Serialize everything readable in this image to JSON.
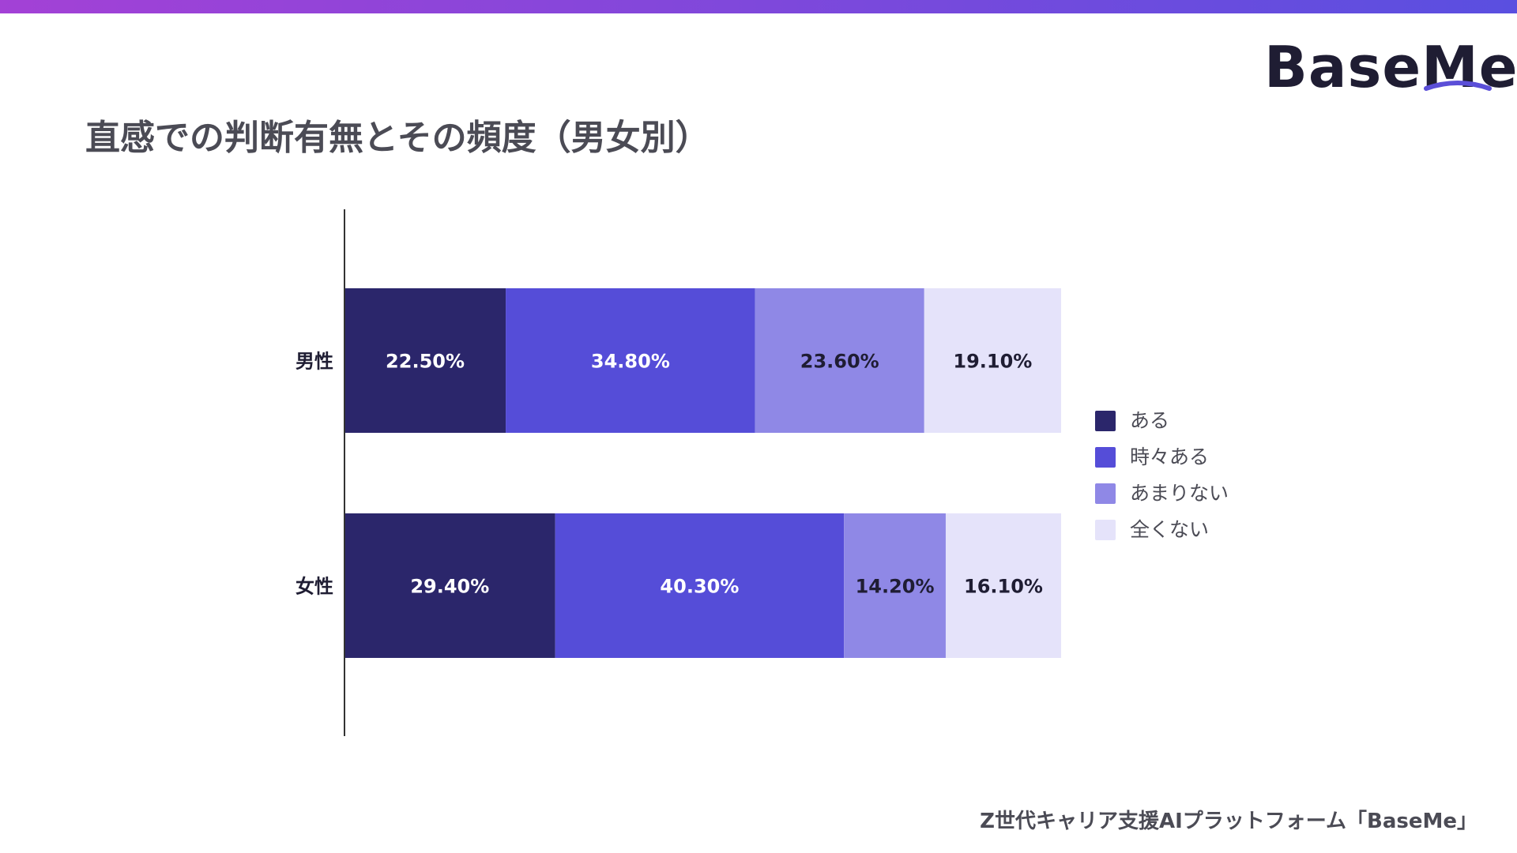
{
  "header": {
    "logo_text": "BaseMe",
    "title": "直感での判断有無とその頻度（男女別）"
  },
  "footer": {
    "text": "Z世代キャリア支援AIプラットフォーム「BaseMe」"
  },
  "colors": {
    "top_bar_start": "#a341d6",
    "top_bar_end": "#5a4fe0",
    "logo_swoosh": "#5b4fd8"
  },
  "chart_data": {
    "type": "bar",
    "orientation": "horizontal",
    "stacked": true,
    "categories": [
      "男性",
      "女性"
    ],
    "series": [
      {
        "name": "ある",
        "values": [
          22.5,
          29.4
        ],
        "labels": [
          "22.50%",
          "29.40%"
        ],
        "color": "#2b266b",
        "label_color": "#ffffff"
      },
      {
        "name": "時々ある",
        "values": [
          34.8,
          40.3
        ],
        "labels": [
          "34.80%",
          "40.30%"
        ],
        "color": "#554dd8",
        "label_color": "#ffffff"
      },
      {
        "name": "あまりない",
        "values": [
          23.6,
          14.2
        ],
        "labels": [
          "23.60%",
          "14.20%"
        ],
        "color": "#8f88e6",
        "label_color": "#1f1d33"
      },
      {
        "name": "全くない",
        "values": [
          19.1,
          16.1
        ],
        "labels": [
          "19.10%",
          "16.10%"
        ],
        "color": "#e5e3fa",
        "label_color": "#1f1d33"
      }
    ],
    "xlim": [
      0,
      100
    ],
    "legend": "right",
    "grid": false
  }
}
